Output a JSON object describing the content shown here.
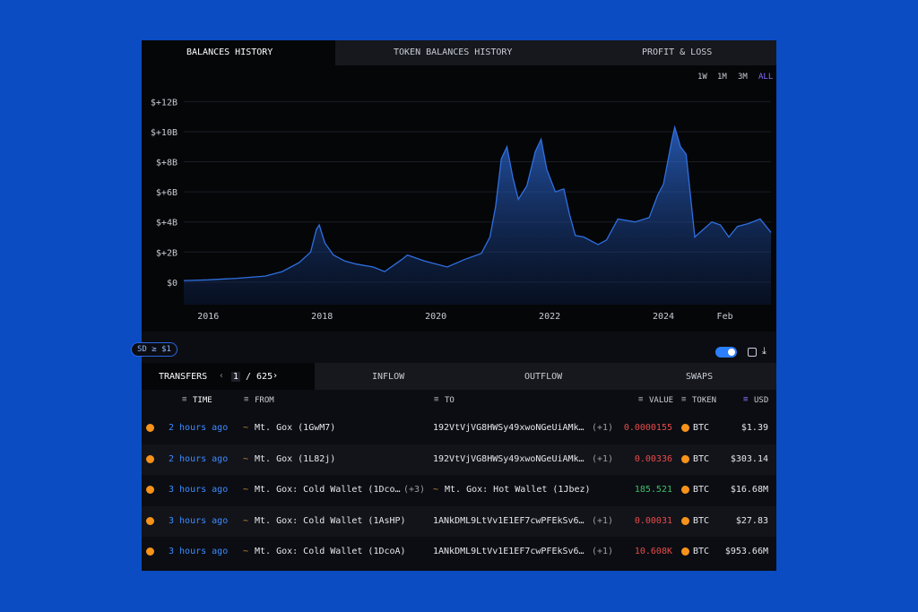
{
  "tabs": [
    "BALANCES HISTORY",
    "TOKEN BALANCES HISTORY",
    "PROFIT & LOSS"
  ],
  "ranges": [
    "1W",
    "1M",
    "3M",
    "ALL"
  ],
  "chart_data": {
    "type": "area",
    "color": "#2f6fe0",
    "grid": true,
    "x": [
      2015.57,
      2016,
      2016.5,
      2017,
      2017.3,
      2017.6,
      2017.8,
      2017.9,
      2017.95,
      2018.05,
      2018.2,
      2018.4,
      2018.6,
      2018.9,
      2019.1,
      2019.4,
      2019.5,
      2019.8,
      2020.2,
      2020.5,
      2020.8,
      2020.95,
      2021.05,
      2021.15,
      2021.25,
      2021.35,
      2021.45,
      2021.6,
      2021.75,
      2021.85,
      2021.95,
      2022.1,
      2022.25,
      2022.35,
      2022.45,
      2022.6,
      2022.85,
      2023.0,
      2023.2,
      2023.5,
      2023.75,
      2023.9,
      2024.0,
      2024.15,
      2024.2,
      2024.3,
      2024.4,
      2024.55,
      2024.7,
      2024.85,
      2025.0,
      2025.15,
      2025.3,
      2025.5,
      2025.7,
      2025.89
    ],
    "values": [
      0.1,
      0.15,
      0.25,
      0.4,
      0.7,
      1.3,
      2.0,
      3.5,
      3.8,
      2.6,
      1.8,
      1.4,
      1.2,
      1.0,
      0.7,
      1.5,
      1.8,
      1.4,
      1.0,
      1.5,
      1.9,
      3.0,
      5.0,
      8.2,
      9.0,
      7.0,
      5.5,
      6.4,
      8.7,
      9.5,
      7.5,
      6.0,
      6.2,
      4.5,
      3.1,
      3.0,
      2.5,
      2.8,
      4.2,
      4.0,
      4.3,
      5.8,
      6.5,
      9.5,
      10.3,
      9.0,
      8.5,
      3.0,
      3.5,
      4.0,
      3.8,
      3.0,
      3.7,
      3.9,
      4.2,
      3.3
    ],
    "xlim": [
      2015.57,
      2025.89
    ],
    "ylim": [
      -1.5,
      12.8
    ],
    "xticks": [
      2016,
      2018,
      2020,
      2022,
      2024,
      {
        "value": 2025.08,
        "label": "Feb"
      }
    ],
    "yticks": [
      {
        "value": 0,
        "label": "$0"
      },
      {
        "value": 2,
        "label": "$+2B"
      },
      {
        "value": 4,
        "label": "$+4B"
      },
      {
        "value": 6,
        "label": "$+6B"
      },
      {
        "value": 8,
        "label": "$+8B"
      },
      {
        "value": 10,
        "label": "$+10B"
      },
      {
        "value": 12,
        "label": "$+12B"
      }
    ]
  },
  "filter": "SD ≥ $1",
  "table_tabs": [
    "TRANSFERS",
    "INFLOW",
    "OUTFLOW",
    "SWAPS"
  ],
  "pagination": {
    "page": 1,
    "total": "/ 625"
  },
  "table": {
    "headers": [
      "TIME",
      "FROM",
      "TO",
      "VALUE",
      "TOKEN",
      "USD"
    ],
    "rows": [
      {
        "time": "2 hours ago",
        "from": "Mt. Gox (1GwM7)",
        "to": "192VtVjVG8HWSy49xwoNGeUiAMk…",
        "to_count": "(+1)",
        "value": "0.0000155",
        "token": "BTC",
        "usd": "$1.39"
      },
      {
        "time": "2 hours ago",
        "from": "Mt. Gox (1L82j)",
        "to": "192VtVjVG8HWSy49xwoNGeUiAMk…",
        "to_count": "(+1)",
        "value": "0.00336",
        "token": "BTC",
        "usd": "$303.14"
      },
      {
        "time": "3 hours ago",
        "from": "Mt. Gox: Cold Wallet (1Dco…",
        "from_count": "(+3)",
        "to": "Mt. Gox: Hot Wallet (1Jbez)",
        "value": "185.521",
        "token": "BTC",
        "usd": "$16.68M"
      },
      {
        "time": "3 hours ago",
        "from": "Mt. Gox: Cold Wallet (1AsHP)",
        "to": "1ANkDML9LtVv1E1EF7cwPFEkSv6…",
        "to_count": "(+1)",
        "value": "0.00031",
        "token": "BTC",
        "usd": "$27.83"
      },
      {
        "time": "3 hours ago",
        "from": "Mt. Gox: Cold Wallet (1DcoA)",
        "to": "1ANkDML9LtVv1E1EF7cwPFEkSv6…",
        "to_count": "(+1)",
        "value": "10.608K",
        "token": "BTC",
        "usd": "$953.66M"
      }
    ]
  }
}
